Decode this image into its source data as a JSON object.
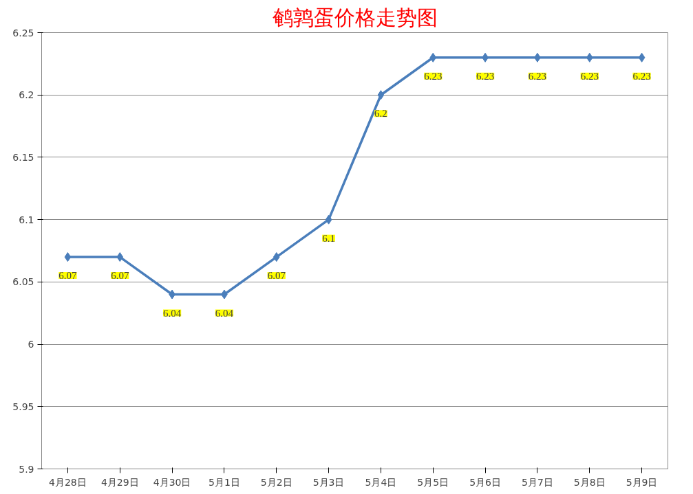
{
  "chart_data": {
    "type": "line",
    "title": "鹌鹑蛋价格走势图",
    "categories": [
      "4月28日",
      "4月29日",
      "4月30日",
      "5月1日",
      "5月2日",
      "5月3日",
      "5月4日",
      "5月5日",
      "5月6日",
      "5月7日",
      "5月8日",
      "5月9日"
    ],
    "series": [
      {
        "color": "#4a7ebb",
        "values": [
          6.07,
          6.07,
          6.04,
          6.04,
          6.07,
          6.1,
          6.2,
          6.23,
          6.23,
          6.23,
          6.23,
          6.23
        ]
      }
    ],
    "ylim": [
      5.9,
      6.25
    ],
    "yticks": [
      5.9,
      5.95,
      6,
      6.05,
      6.1,
      6.15,
      6.2,
      6.25
    ],
    "grid": "y",
    "marker": "diamond",
    "line_style": "solid",
    "data_labels": true
  }
}
